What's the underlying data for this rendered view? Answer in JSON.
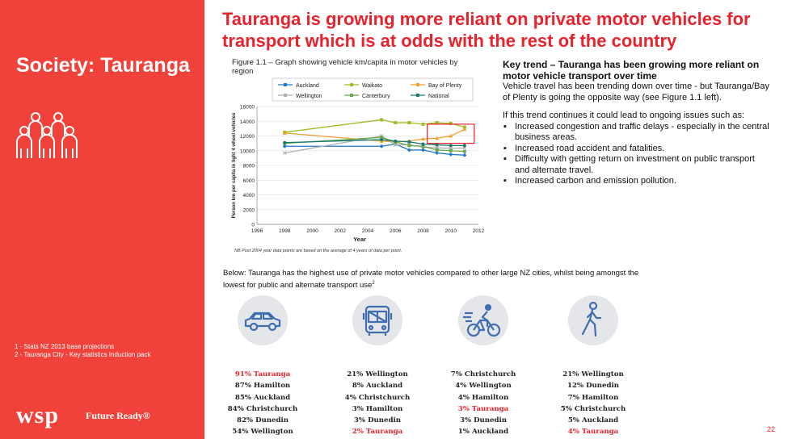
{
  "sidebar": {
    "title": "Society: Tauranga",
    "footnotes": [
      "1 - Stats NZ 2013 base projections",
      "2 - Tauranga City - Key statistics Induction pack"
    ],
    "logo": "wsp",
    "tagline": "Future Ready®",
    "bg_color": "#f0413a"
  },
  "title": "Tauranga is growing more reliant on private motor vehicles for transport which is at odds with the rest of the country",
  "figure_caption": "Figure 1.1 – Graph showing vehicle km/capita in motor vehicles by region",
  "chart_note": "NB Post 2004 year data points are based on the average of 4 years of data per point.",
  "chart_data": {
    "type": "line",
    "xlabel": "Year",
    "ylabel": "Person km per capita in light 4 wheel vehicles",
    "xlim": [
      1996,
      2012
    ],
    "ylim": [
      0,
      16000
    ],
    "xticks": [
      "1996",
      "1998",
      "2000",
      "2002",
      "2004",
      "2006",
      "2008",
      "2010",
      "2012"
    ],
    "yticks": [
      "0",
      "2000",
      "4000",
      "6000",
      "8000",
      "10000",
      "12000",
      "14000",
      "16000"
    ],
    "grid": true,
    "legend_position": "top",
    "series": [
      {
        "name": "Auckland",
        "color": "#1f77c6",
        "marker": "diamond",
        "points": [
          [
            1998,
            10600
          ],
          [
            2005,
            10600
          ],
          [
            2006,
            10900
          ],
          [
            2007,
            10100
          ],
          [
            2008,
            10100
          ],
          [
            2009,
            9700
          ],
          [
            2010,
            9500
          ],
          [
            2011,
            9400
          ]
        ]
      },
      {
        "name": "Waikato",
        "color": "#a3b925",
        "marker": "square",
        "points": [
          [
            1998,
            12500
          ],
          [
            2005,
            14200
          ],
          [
            2006,
            13800
          ],
          [
            2007,
            13800
          ],
          [
            2008,
            13600
          ],
          [
            2009,
            13800
          ],
          [
            2010,
            13700
          ],
          [
            2011,
            13200
          ]
        ]
      },
      {
        "name": "Bay of Plenty",
        "color": "#f0a030",
        "marker": "triangle",
        "points": [
          [
            1998,
            12400
          ],
          [
            2005,
            11300
          ],
          [
            2006,
            11200
          ],
          [
            2007,
            11300
          ],
          [
            2008,
            11600
          ],
          [
            2009,
            11700
          ],
          [
            2010,
            12000
          ],
          [
            2011,
            12900
          ]
        ]
      },
      {
        "name": "Wellington",
        "color": "#b0b0b0",
        "marker": "x",
        "points": [
          [
            1998,
            9700
          ],
          [
            2005,
            12000
          ],
          [
            2006,
            10800
          ],
          [
            2007,
            10800
          ],
          [
            2008,
            10500
          ],
          [
            2009,
            10400
          ],
          [
            2010,
            10300
          ],
          [
            2011,
            10400
          ]
        ]
      },
      {
        "name": "Canterbury",
        "color": "#6aa84f",
        "marker": "square",
        "points": [
          [
            1998,
            11000
          ],
          [
            2005,
            11800
          ],
          [
            2006,
            11200
          ],
          [
            2007,
            10700
          ],
          [
            2008,
            10600
          ],
          [
            2009,
            10100
          ],
          [
            2010,
            10000
          ],
          [
            2011,
            9900
          ]
        ]
      },
      {
        "name": "National",
        "color": "#1a7a70",
        "marker": "circle",
        "points": [
          [
            1998,
            11100
          ],
          [
            2005,
            11500
          ],
          [
            2006,
            11300
          ],
          [
            2007,
            11200
          ],
          [
            2008,
            10900
          ],
          [
            2009,
            10800
          ],
          [
            2010,
            10700
          ],
          [
            2011,
            10700
          ]
        ]
      }
    ],
    "highlight_box": {
      "x": [
        2008.3,
        2011.7
      ],
      "y": [
        11000,
        13600
      ],
      "color": "#e8232c"
    }
  },
  "key_trend": {
    "heading": "Key trend – Tauranga has been growing more reliant on motor vehicle transport over time",
    "para1": "Vehicle travel has been trending down over time - but Tauranga/Bay of Plenty is going the opposite way (see Figure 1.1 left).",
    "para2": "If this trend continues it could lead to ongoing issues such as:",
    "bullets": [
      "Increased congestion and traffic delays - especially in the central business areas.",
      "Increased road accident and fatalities.",
      "Difficulty with getting return on investment on public transport and alternate travel.",
      "Increased carbon and emission pollution."
    ]
  },
  "below_text": "Below: Tauranga has the highest use of private motor vehicles compared to other large NZ cities, whilst being amongst the lowest for public and alternate transport use",
  "below_sup": "2",
  "modes": [
    {
      "icon": "car-icon",
      "stats": [
        "91% Tauranga",
        "87% Hamilton",
        "85% Auckland",
        "84% Christchurch",
        "82% Dunedin",
        "54% Wellington"
      ],
      "highlight": 0
    },
    {
      "icon": "bus-icon",
      "stats": [
        "21% Wellington",
        "8% Auckland",
        "4% Christchurch",
        "3% Hamilton",
        "3% Dunedin",
        "2% Tauranga"
      ],
      "highlight": 5
    },
    {
      "icon": "cyclist-icon",
      "stats": [
        "7% Christchurch",
        "4% Wellington",
        "4% Hamilton",
        "3% Tauranga",
        "3% Dunedin",
        "1% Auckland"
      ],
      "highlight": 3
    },
    {
      "icon": "walker-icon",
      "stats": [
        "21% Wellington",
        "12% Dunedin",
        "7% Hamilton",
        "5% Christchurch",
        "5% Auckland",
        "4% Tauranga"
      ],
      "highlight": 5
    }
  ],
  "page_number": "22",
  "accent_color": "#e8232c"
}
